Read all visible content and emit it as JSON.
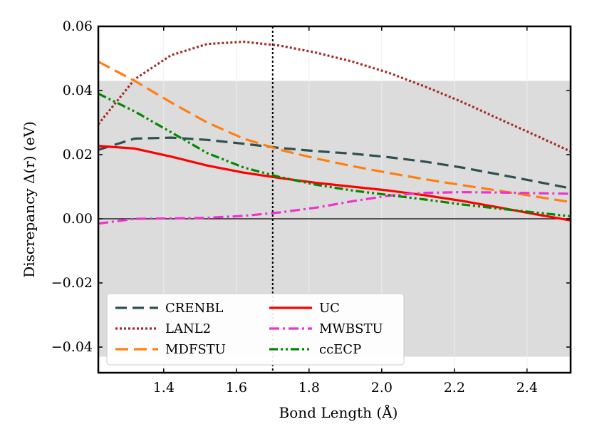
{
  "chart_data": {
    "type": "line",
    "xlabel": "Bond Length (Å)",
    "ylabel": "Discrepancy Δ(r) (eV)",
    "xlim": [
      1.22,
      2.52
    ],
    "ylim": [
      -0.048,
      0.06
    ],
    "xticks": [
      1.4,
      1.6,
      1.8,
      2.0,
      2.2,
      2.4
    ],
    "xtick_labels": [
      "1.4",
      "1.6",
      "1.8",
      "2.0",
      "2.2",
      "2.4"
    ],
    "yticks": [
      -0.04,
      -0.02,
      0.0,
      0.02,
      0.04,
      0.06
    ],
    "ytick_labels": [
      "−0.04",
      "−0.02",
      "0.00",
      "0.02",
      "0.04",
      "0.06"
    ],
    "shaded_band": [
      -0.043,
      0.043
    ],
    "zero_line": 0.0,
    "vertical_line_x": 1.7,
    "legend_location": "lower-left",
    "series": [
      {
        "name": "CRENBL",
        "color": "#2f4f4f",
        "style": "dashed",
        "x": [
          1.22,
          1.32,
          1.42,
          1.52,
          1.62,
          1.72,
          1.82,
          1.92,
          2.02,
          2.12,
          2.22,
          2.32,
          2.42,
          2.52
        ],
        "y": [
          0.0215,
          0.025,
          0.0253,
          0.0246,
          0.0234,
          0.0221,
          0.0211,
          0.0203,
          0.0192,
          0.0178,
          0.016,
          0.0139,
          0.0117,
          0.0095
        ]
      },
      {
        "name": "LANL2",
        "color": "#a52a2a",
        "style": "dotted",
        "x": [
          1.22,
          1.32,
          1.42,
          1.52,
          1.62,
          1.72,
          1.82,
          1.92,
          2.02,
          2.12,
          2.22,
          2.32,
          2.42,
          2.52
        ],
        "y": [
          0.0295,
          0.0435,
          0.051,
          0.0545,
          0.0552,
          0.054,
          0.0518,
          0.049,
          0.0455,
          0.0412,
          0.0365,
          0.0313,
          0.0262,
          0.021
        ]
      },
      {
        "name": "MDFSTU",
        "color": "#ff7f0e",
        "style": "dashed",
        "x": [
          1.22,
          1.32,
          1.42,
          1.52,
          1.62,
          1.72,
          1.82,
          1.92,
          2.02,
          2.12,
          2.22,
          2.32,
          2.42,
          2.52
        ],
        "y": [
          0.049,
          0.043,
          0.0363,
          0.03,
          0.025,
          0.0215,
          0.0188,
          0.0164,
          0.0143,
          0.0123,
          0.0105,
          0.0088,
          0.007,
          0.0052
        ]
      },
      {
        "name": "UC",
        "color": "#ff0000",
        "style": "solid",
        "x": [
          1.22,
          1.32,
          1.42,
          1.52,
          1.62,
          1.72,
          1.82,
          1.92,
          2.02,
          2.12,
          2.22,
          2.32,
          2.42,
          2.52
        ],
        "y": [
          0.0227,
          0.0219,
          0.0194,
          0.0166,
          0.0144,
          0.0127,
          0.0112,
          0.01,
          0.0088,
          0.0073,
          0.0056,
          0.0036,
          0.0015,
          -0.0005
        ]
      },
      {
        "name": "MWBSTU",
        "color": "#ee33cc",
        "style": "dashdot",
        "x": [
          1.22,
          1.32,
          1.42,
          1.52,
          1.62,
          1.72,
          1.82,
          1.92,
          2.02,
          2.12,
          2.22,
          2.32,
          2.42,
          2.52
        ],
        "y": [
          -0.0015,
          0.0,
          0.0001,
          0.0003,
          0.0009,
          0.002,
          0.0035,
          0.0055,
          0.0072,
          0.0081,
          0.0083,
          0.0082,
          0.008,
          0.0078
        ]
      },
      {
        "name": "ccECP",
        "color": "#008800",
        "style": "dashdotdot",
        "x": [
          1.22,
          1.32,
          1.42,
          1.52,
          1.62,
          1.72,
          1.82,
          1.92,
          2.02,
          2.12,
          2.22,
          2.32,
          2.42,
          2.52
        ],
        "y": [
          0.039,
          0.0335,
          0.027,
          0.0205,
          0.016,
          0.013,
          0.0106,
          0.0088,
          0.0074,
          0.006,
          0.0045,
          0.0032,
          0.002,
          0.0008
        ]
      }
    ]
  }
}
